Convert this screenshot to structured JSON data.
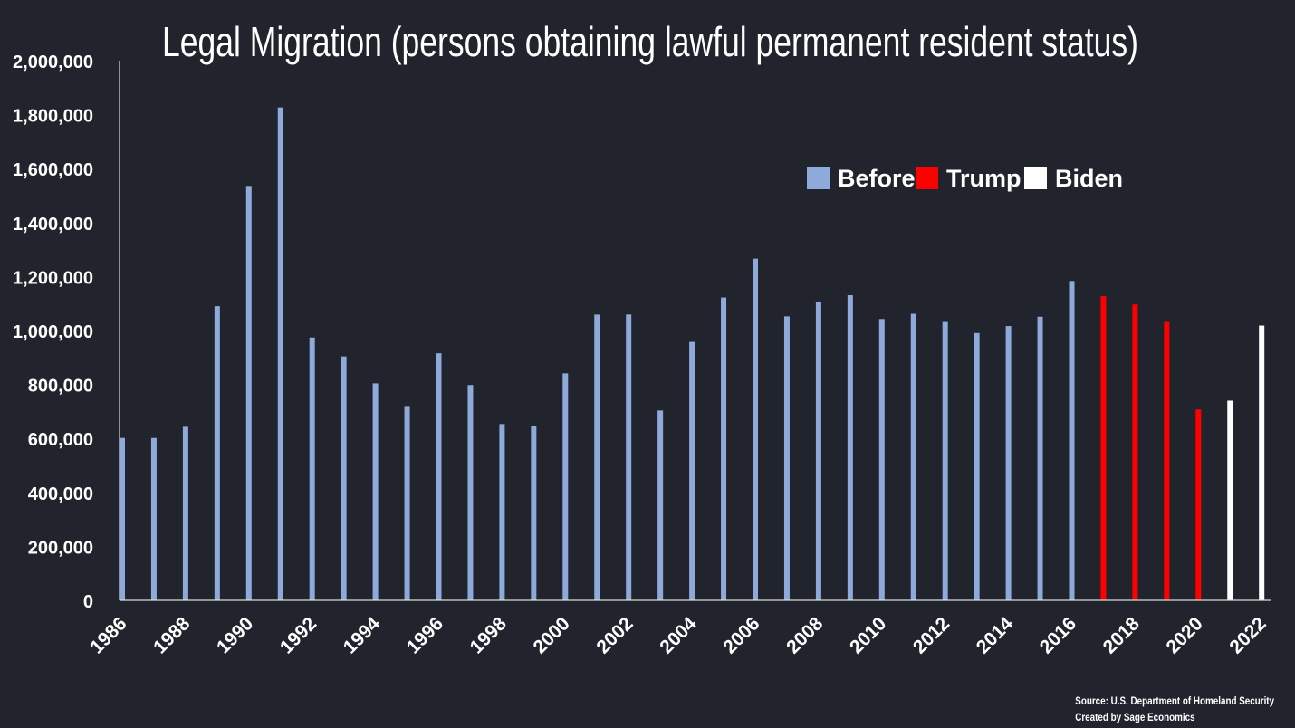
{
  "chart_data": {
    "type": "bar",
    "title": "Legal Migration (persons obtaining lawful permanent resident status)",
    "xlabel": "",
    "ylabel": "",
    "ylim": [
      0,
      2000000
    ],
    "yticks": [
      "0",
      "200,000",
      "400,000",
      "600,000",
      "800,000",
      "1,000,000",
      "1,200,000",
      "1,400,000",
      "1,600,000",
      "1,800,000",
      "2,000,000"
    ],
    "xticks": [
      "1986",
      "1988",
      "1990",
      "1992",
      "1994",
      "1996",
      "1998",
      "2000",
      "2002",
      "2004",
      "2006",
      "2008",
      "2010",
      "2012",
      "2014",
      "2016",
      "2018",
      "2020",
      "2022"
    ],
    "categories": [
      "1986",
      "1987",
      "1988",
      "1989",
      "1990",
      "1991",
      "1992",
      "1993",
      "1994",
      "1995",
      "1996",
      "1997",
      "1998",
      "1999",
      "2000",
      "2001",
      "2002",
      "2003",
      "2004",
      "2005",
      "2006",
      "2007",
      "2008",
      "2009",
      "2010",
      "2011",
      "2012",
      "2013",
      "2014",
      "2015",
      "2016",
      "2017",
      "2018",
      "2019",
      "2020",
      "2021",
      "2022"
    ],
    "values": [
      601708,
      601516,
      643025,
      1090172,
      1535872,
      1826595,
      973977,
      903916,
      803993,
      720177,
      915560,
      797847,
      653206,
      644787,
      841002,
      1058902,
      1059356,
      703542,
      957883,
      1122257,
      1266129,
      1052415,
      1107126,
      1130818,
      1042625,
      1062040,
      1031631,
      990553,
      1016518,
      1051031,
      1183505,
      1127167,
      1096611,
      1031765,
      707362,
      740002,
      1018349
    ],
    "groups": [
      "Before",
      "Before",
      "Before",
      "Before",
      "Before",
      "Before",
      "Before",
      "Before",
      "Before",
      "Before",
      "Before",
      "Before",
      "Before",
      "Before",
      "Before",
      "Before",
      "Before",
      "Before",
      "Before",
      "Before",
      "Before",
      "Before",
      "Before",
      "Before",
      "Before",
      "Before",
      "Before",
      "Before",
      "Before",
      "Before",
      "Before",
      "Trump",
      "Trump",
      "Trump",
      "Trump",
      "Biden",
      "Biden"
    ],
    "legend": [
      {
        "name": "Before",
        "color": "#8eaadb"
      },
      {
        "name": "Trump",
        "color": "#ff0000"
      },
      {
        "name": "Biden",
        "color": "#ffffff"
      }
    ],
    "legend_position": "top-right",
    "grid": false
  },
  "source_line": "Source: U.S. Department of Homeland Security",
  "credit_line": "Created by Sage Economics"
}
